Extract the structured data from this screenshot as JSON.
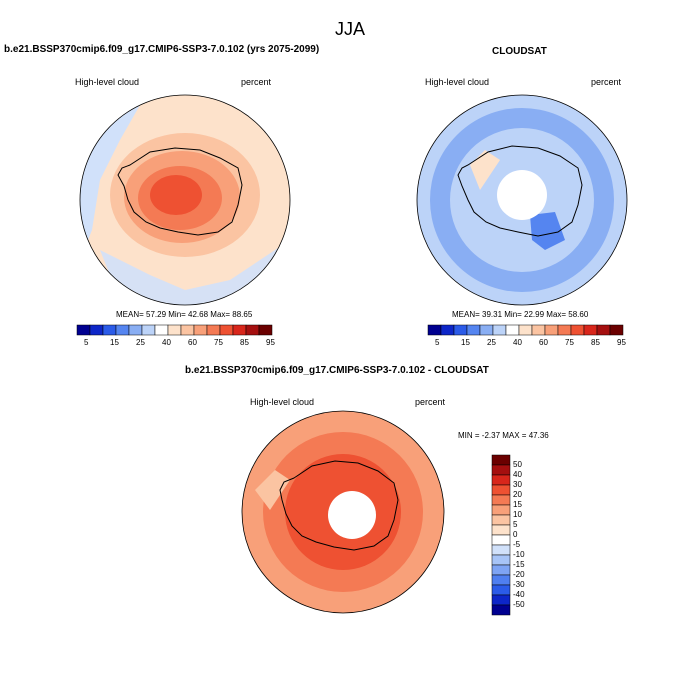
{
  "page": {
    "title": "JJA"
  },
  "colors": {
    "coast": "#000000",
    "pole_hole": "#ffffff",
    "horizontal_scale": [
      "#000090",
      "#0d26c8",
      "#2b5be8",
      "#5585f0",
      "#89aef3",
      "#bcd3f8",
      "#ffffff",
      "#fde2cb",
      "#fbc4a2",
      "#f8a079",
      "#f47a54",
      "#ee5132",
      "#d8261b",
      "#a50f0f",
      "#6b0000"
    ],
    "diff_scale": [
      "#000090",
      "#0d26c8",
      "#2b5be8",
      "#4f7ff0",
      "#7ea4f4",
      "#a7c4f7",
      "#d1e1fa",
      "#ffffff",
      "#fde2cb",
      "#fbc4a2",
      "#f8a079",
      "#f47a54",
      "#ee5132",
      "#d8261b",
      "#a50f0f",
      "#6b0000"
    ]
  },
  "panels": [
    {
      "id": "model",
      "header": "b.e21.BSSP370cmip6.f09_g17.CMIP6-SSP3-7.0.102 (yrs 2075-2099)",
      "left_label": "High-level cloud",
      "right_label": "percent",
      "stats_text": "MEAN=  57.29  Min=  42.68  Max=  88.65",
      "stats": {
        "mean": 57.29,
        "min": 42.68,
        "max": 88.65
      },
      "field": {
        "outer_fill": "#fde2cb",
        "ocean_patch_fill": "#d1e1fa",
        "levels": [
          "#fbc4a2",
          "#f8a079",
          "#f47a54",
          "#ee5132"
        ]
      }
    },
    {
      "id": "obs",
      "header": "CLOUDSAT",
      "left_label": "High-level cloud",
      "right_label": "percent",
      "stats_text": "MEAN=  39.31  Min=  22.99  Max=  58.60",
      "stats": {
        "mean": 39.31,
        "min": 22.99,
        "max": 58.6
      },
      "field": {
        "outer_fill": "#bcd3f8",
        "ring_fill": "#89aef3",
        "levels": [
          "#bcd3f8",
          "#fde2cb",
          "#5585f0"
        ]
      }
    },
    {
      "id": "diff",
      "header": "b.e21.BSSP370cmip6.f09_g17.CMIP6-SSP3-7.0.102 - CLOUDSAT",
      "left_label": "High-level cloud",
      "right_label": "percent",
      "stats_text": "MIN =  -2.37 MAX =  47.36",
      "stats": {
        "min": -2.37,
        "max": 47.36
      },
      "field": {
        "outer_fill": "#f8a079",
        "levels": [
          "#f47a54",
          "#ee5132"
        ]
      }
    }
  ],
  "colorbars": {
    "horizontal": {
      "levels": [
        5,
        10,
        15,
        20,
        25,
        30,
        40,
        50,
        60,
        70,
        75,
        80,
        85,
        90,
        95
      ],
      "labels": [
        "5",
        "15",
        "25",
        "40",
        "60",
        "75",
        "85",
        "95"
      ]
    },
    "vertical": {
      "labels": [
        "50",
        "40",
        "30",
        "20",
        "15",
        "10",
        "5",
        "0",
        "-5",
        "-10",
        "-15",
        "-20",
        "-30",
        "-40",
        "-50"
      ]
    }
  }
}
